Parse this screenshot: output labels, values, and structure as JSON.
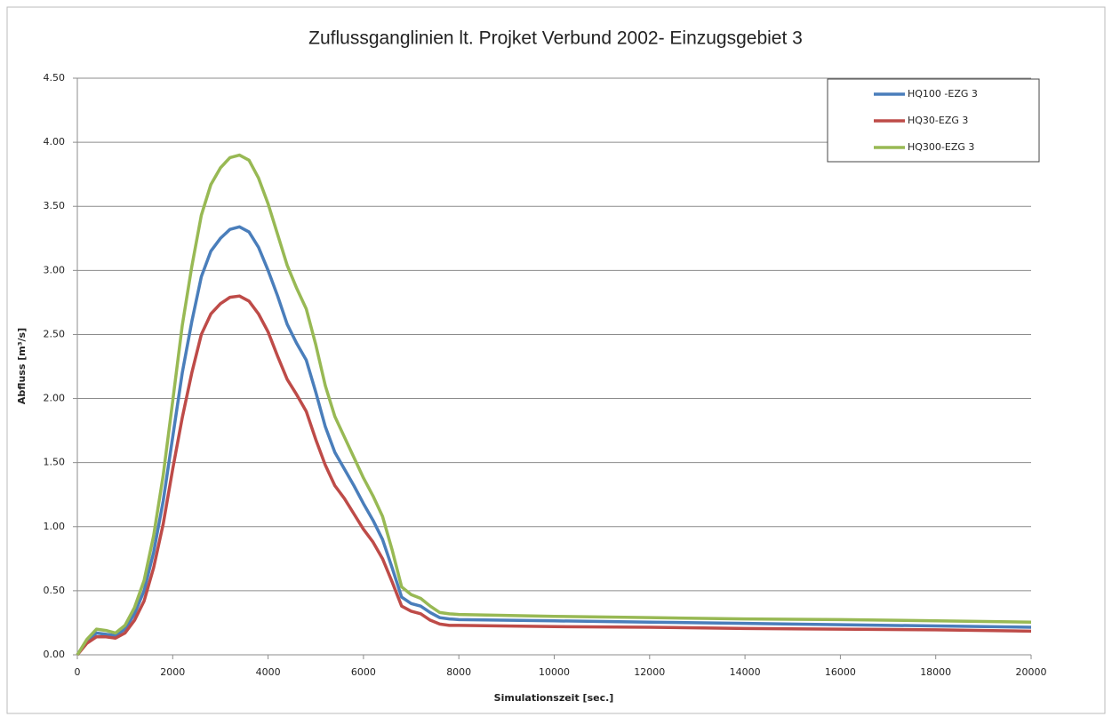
{
  "chart_data": {
    "type": "line",
    "title": "Zuflussganglinien  lt. Projket Verbund 2002-  Einzugsgebiet 3",
    "x_label": "Simulationszeit [sec.]",
    "y_label": "Abfluss [m³/s]",
    "x": [
      0,
      200,
      400,
      600,
      800,
      1000,
      1200,
      1400,
      1600,
      1800,
      2000,
      2200,
      2400,
      2600,
      2800,
      3000,
      3200,
      3400,
      3600,
      3800,
      4000,
      4200,
      4400,
      4600,
      4800,
      5000,
      5200,
      5400,
      5600,
      5800,
      6000,
      6200,
      6400,
      6600,
      6800,
      7000,
      7200,
      7400,
      7600,
      7800,
      8000,
      10000,
      12000,
      14000,
      16000,
      18000,
      20000
    ],
    "series": [
      {
        "name": "HQ100 -EZG 3",
        "color": "#4a7ebb",
        "values": [
          0,
          0.1,
          0.17,
          0.16,
          0.15,
          0.2,
          0.32,
          0.5,
          0.8,
          1.2,
          1.7,
          2.2,
          2.6,
          2.95,
          3.15,
          3.25,
          3.32,
          3.34,
          3.3,
          3.18,
          3.0,
          2.8,
          2.58,
          2.43,
          2.3,
          2.05,
          1.78,
          1.58,
          1.45,
          1.32,
          1.18,
          1.05,
          0.9,
          0.68,
          0.45,
          0.4,
          0.38,
          0.33,
          0.29,
          0.28,
          0.275,
          0.265,
          0.255,
          0.245,
          0.235,
          0.225,
          0.215
        ]
      },
      {
        "name": "HQ30-EZG 3",
        "color": "#be4b48",
        "values": [
          0,
          0.09,
          0.14,
          0.14,
          0.13,
          0.17,
          0.27,
          0.42,
          0.68,
          1.02,
          1.45,
          1.85,
          2.2,
          2.5,
          2.66,
          2.74,
          2.79,
          2.8,
          2.76,
          2.66,
          2.52,
          2.33,
          2.15,
          2.03,
          1.9,
          1.68,
          1.48,
          1.32,
          1.22,
          1.1,
          0.98,
          0.88,
          0.75,
          0.57,
          0.38,
          0.34,
          0.32,
          0.27,
          0.24,
          0.23,
          0.23,
          0.22,
          0.215,
          0.205,
          0.2,
          0.195,
          0.185
        ]
      },
      {
        "name": "HQ300-EZG 3",
        "color": "#98b954",
        "values": [
          0,
          0.12,
          0.2,
          0.19,
          0.17,
          0.23,
          0.37,
          0.58,
          0.93,
          1.4,
          1.98,
          2.57,
          3.03,
          3.43,
          3.67,
          3.8,
          3.88,
          3.9,
          3.86,
          3.72,
          3.52,
          3.28,
          3.04,
          2.86,
          2.7,
          2.42,
          2.1,
          1.86,
          1.7,
          1.54,
          1.38,
          1.24,
          1.08,
          0.82,
          0.53,
          0.47,
          0.44,
          0.38,
          0.33,
          0.32,
          0.315,
          0.3,
          0.29,
          0.28,
          0.275,
          0.265,
          0.255
        ]
      }
    ],
    "xlim": [
      0,
      20000
    ],
    "xticks": [
      0,
      2000,
      4000,
      6000,
      8000,
      10000,
      12000,
      14000,
      16000,
      18000,
      20000
    ],
    "ylim": [
      0,
      4.5
    ],
    "yticks": [
      {
        "value": 0,
        "label": "0.00"
      },
      {
        "value": 0.5,
        "label": "0.50"
      },
      {
        "value": 1,
        "label": "1.00"
      },
      {
        "value": 1.5,
        "label": "1.50"
      },
      {
        "value": 2,
        "label": "2.00"
      },
      {
        "value": 2.5,
        "label": "2.50"
      },
      {
        "value": 3,
        "label": "3.00"
      },
      {
        "value": 3.5,
        "label": "3.50"
      },
      {
        "value": 4,
        "label": "4.00"
      },
      {
        "value": 4.5,
        "label": "4.50"
      }
    ],
    "grid": true,
    "legend": "upper right"
  }
}
